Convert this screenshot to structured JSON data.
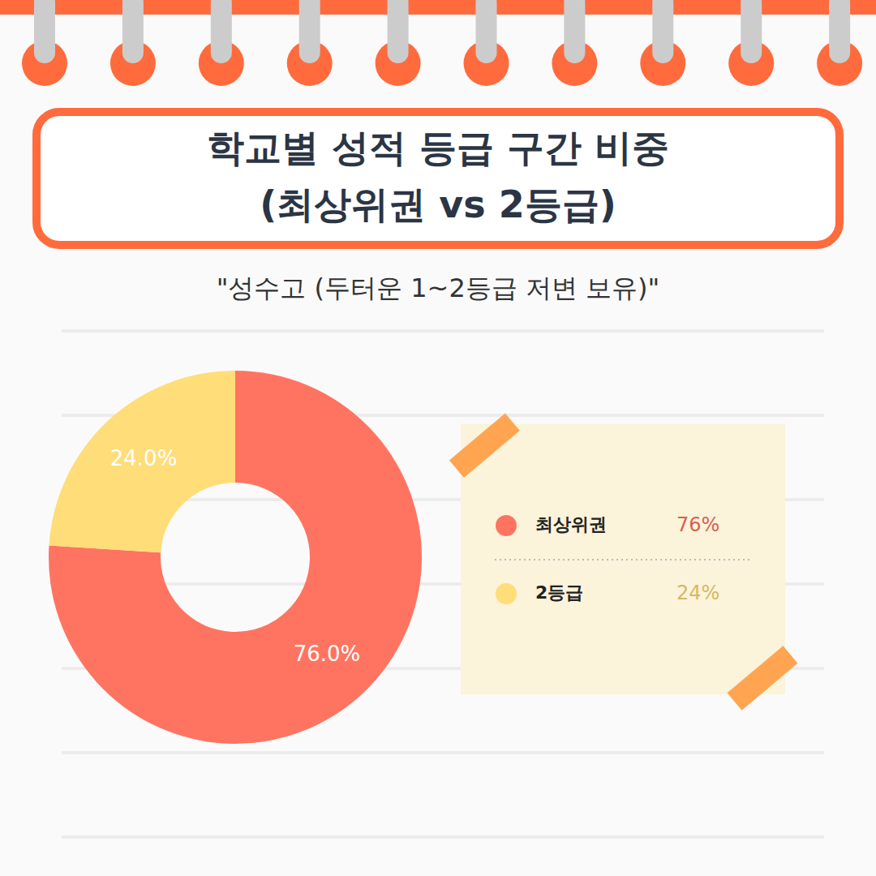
{
  "chart_data": {
    "type": "pie",
    "title": "학교별 성적 등급 구간 비중 (최상위권 vs 2등급)",
    "subtitle": "\"성수고 (두터운 1~2등급 저변 보유)\"",
    "categories": [
      "최상위권",
      "2등급"
    ],
    "values": [
      76,
      24
    ],
    "value_labels": [
      "76.0%",
      "24.0%"
    ],
    "legend_value_labels": [
      "76%",
      "24%"
    ],
    "colors": [
      "#FF7461",
      "#FFDD78"
    ],
    "data_labels": true,
    "legend": "right"
  }
}
